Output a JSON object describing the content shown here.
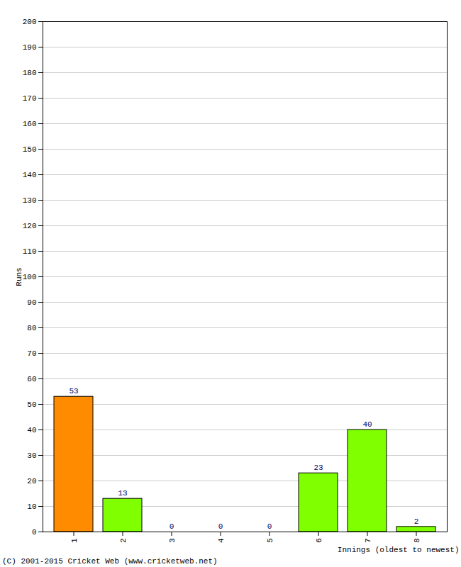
{
  "chart_data": {
    "type": "bar",
    "categories": [
      "1",
      "2",
      "3",
      "4",
      "5",
      "6",
      "7",
      "8"
    ],
    "values": [
      53,
      13,
      0,
      0,
      0,
      23,
      40,
      2
    ],
    "colors": [
      "#ff8c00",
      "#80ff00",
      "#80ff00",
      "#80ff00",
      "#80ff00",
      "#80ff00",
      "#80ff00",
      "#80ff00"
    ],
    "x_label": "Innings (oldest to newest)",
    "y_label": "Runs",
    "ylim": [
      0,
      200
    ],
    "yticks": [
      0,
      10,
      20,
      30,
      40,
      50,
      60,
      70,
      80,
      90,
      100,
      110,
      120,
      130,
      140,
      150,
      160,
      170,
      180,
      190,
      200
    ],
    "grid": true,
    "data_labels": true,
    "annotations": [
      "(C) 2001-2015 Cricket Web (www.cricketweb.net)"
    ]
  }
}
